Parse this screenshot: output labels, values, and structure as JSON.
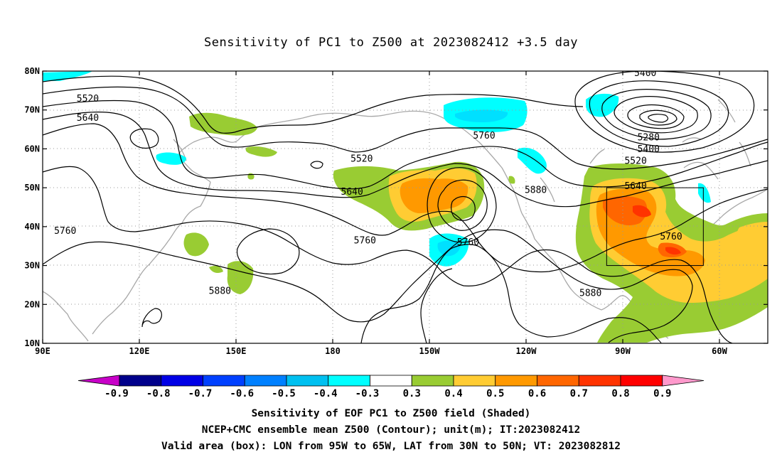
{
  "title": "Sensitivity of PC1 to Z500 at 2023082412 +3.5 day",
  "lat_ticks": [
    {
      "value": 80,
      "label": "80N"
    },
    {
      "value": 70,
      "label": "70N"
    },
    {
      "value": 60,
      "label": "60N"
    },
    {
      "value": 50,
      "label": "50N"
    },
    {
      "value": 40,
      "label": "40N"
    },
    {
      "value": 30,
      "label": "30N"
    },
    {
      "value": 20,
      "label": "20N"
    },
    {
      "value": 10,
      "label": "10N"
    }
  ],
  "lon_ticks": [
    {
      "value": 90,
      "label": "90E"
    },
    {
      "value": 120,
      "label": "120E"
    },
    {
      "value": 150,
      "label": "150E"
    },
    {
      "value": 180,
      "label": "180"
    },
    {
      "value": 210,
      "label": "150W"
    },
    {
      "value": 240,
      "label": "120W"
    },
    {
      "value": 270,
      "label": "90W"
    },
    {
      "value": 300,
      "label": "60W"
    }
  ],
  "extent": {
    "lon_min": 90,
    "lon_max": 315,
    "lat_min": 10,
    "lat_max": 80
  },
  "valid_box": {
    "lon_min": 265,
    "lon_max": 295,
    "lat_min": 30,
    "lat_max": 50
  },
  "contour_labels": [
    {
      "text": "5520",
      "lon": 104,
      "lat": 73
    },
    {
      "text": "5640",
      "lon": 104,
      "lat": 68
    },
    {
      "text": "5760",
      "lon": 97,
      "lat": 39
    },
    {
      "text": "5880",
      "lon": 145,
      "lat": 23.5
    },
    {
      "text": "5520",
      "lon": 189,
      "lat": 57.5
    },
    {
      "text": "5640",
      "lon": 186,
      "lat": 49
    },
    {
      "text": "5760",
      "lon": 190,
      "lat": 36.5
    },
    {
      "text": "5760",
      "lon": 227,
      "lat": 63.5
    },
    {
      "text": "5760",
      "lon": 222,
      "lat": 36
    },
    {
      "text": "5880",
      "lon": 243,
      "lat": 49.5
    },
    {
      "text": "5880",
      "lon": 260,
      "lat": 23
    },
    {
      "text": "5400",
      "lon": 277,
      "lat": 79.5
    },
    {
      "text": "5280",
      "lon": 278,
      "lat": 63
    },
    {
      "text": "5400",
      "lon": 278,
      "lat": 60
    },
    {
      "text": "5520",
      "lon": 274,
      "lat": 57
    },
    {
      "text": "5640",
      "lon": 274,
      "lat": 50.5
    },
    {
      "text": "5760",
      "lon": 285,
      "lat": 37.5
    }
  ],
  "colorbar": {
    "levels": [
      "-0.9",
      "-0.8",
      "-0.7",
      "-0.6",
      "-0.5",
      "-0.4",
      "-0.3",
      "0.3",
      "0.4",
      "0.5",
      "0.6",
      "0.7",
      "0.8",
      "0.9"
    ],
    "colors": [
      "#c800c8",
      "#00008b",
      "#0000e6",
      "#0040ff",
      "#0080ff",
      "#00c0f0",
      "#00ffff",
      "#ffffff",
      "#99cc33",
      "#ffcc33",
      "#ff9900",
      "#ff6600",
      "#ff3300",
      "#ff0000",
      "#ff99cc"
    ]
  },
  "captions": [
    "Sensitivity of EOF PC1 to Z500 field (Shaded)",
    "NCEP+CMC ensemble mean Z500 (Contour); unit(m); IT:2023082412",
    "Valid area (box): LON from 95W to 65W, LAT from 30N to 50N; VT: 2023082812"
  ]
}
